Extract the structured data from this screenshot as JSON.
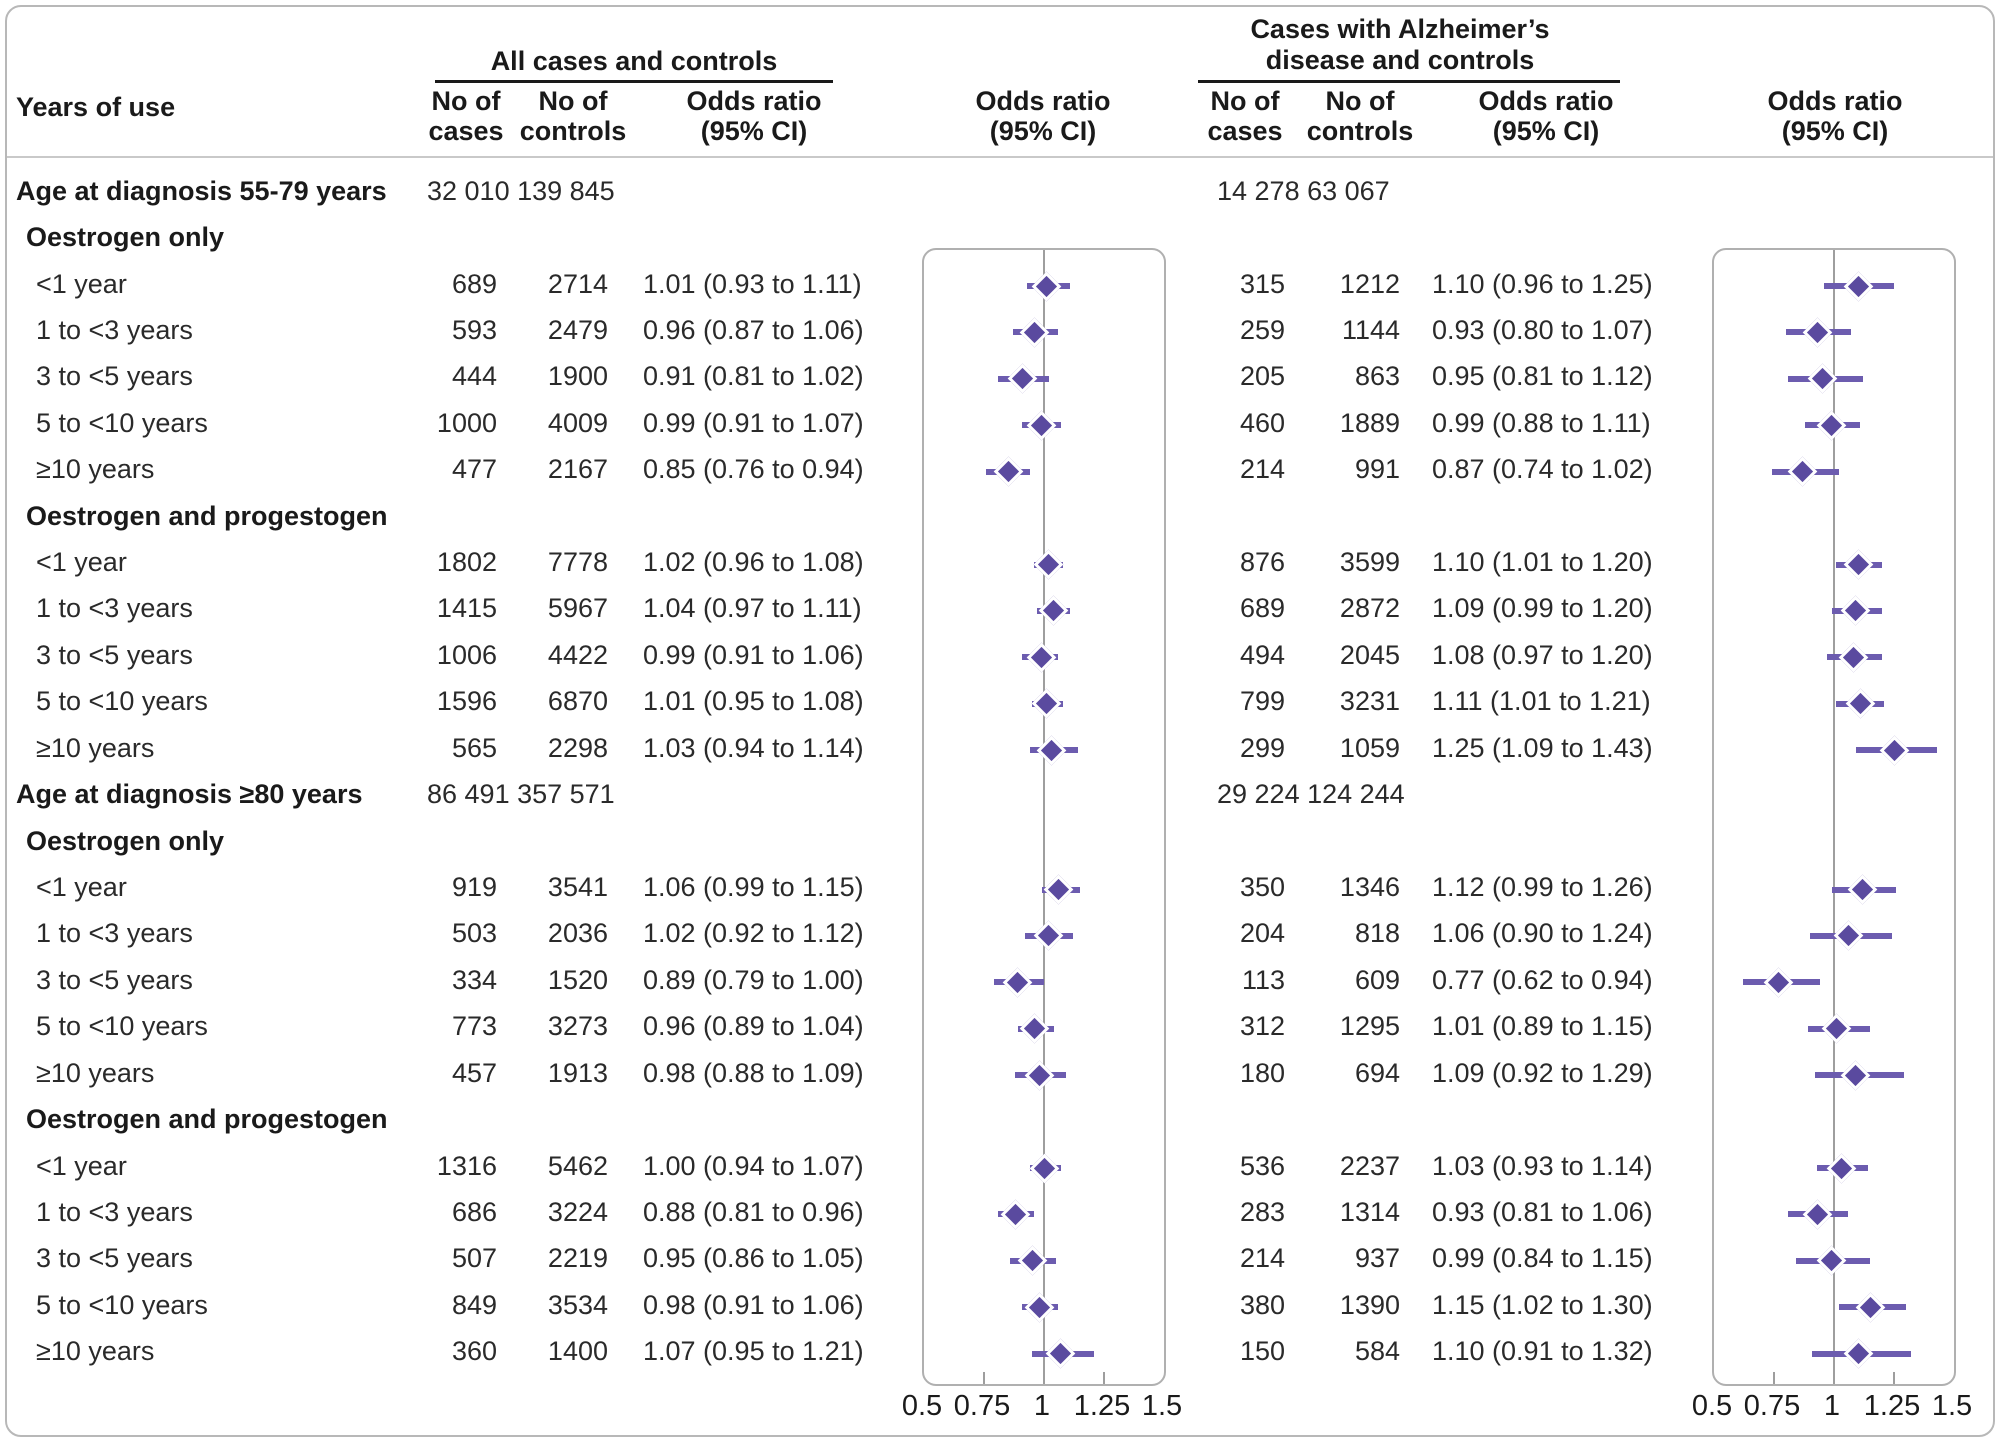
{
  "headers": {
    "years_of_use": "Years of use",
    "group1_title": "All cases and controls",
    "group2_title_line1": "Cases with Alzheimer’s",
    "group2_title_line2": "disease and controls",
    "no_of_line1": "No of",
    "no_of_cases_line2": "cases",
    "no_of_controls_line2": "controls",
    "odds_ratio_line1": "Odds ratio",
    "odds_ratio_line2": "(95% CI)"
  },
  "axis": {
    "ticks": [
      "0.5",
      "0.75",
      "1",
      "1.25",
      "1.5"
    ],
    "tick_values": [
      0.5,
      0.75,
      1,
      1.25,
      1.5
    ],
    "min": 0.5,
    "max": 1.5,
    "reference_value": 1
  },
  "colors": {
    "diamond": "#5a4a9f",
    "ci_line": "#6c5caf",
    "reference_line": "#9e9e9e",
    "panel_border": "#b0b0b0"
  },
  "chart_data": {
    "type": "forest",
    "x_scale": "odds ratio (95% CI)",
    "xlim": [
      0.5,
      1.5
    ],
    "group_labels": [
      "All cases and controls",
      "Cases with Alzheimer’s disease and controls"
    ],
    "rows": [
      {
        "type": "section",
        "label": "Age at diagnosis 55-79 years",
        "g1_totals": "32 010 139 845",
        "g2_totals": "14 278  63 067"
      },
      {
        "type": "subsection",
        "label": "Oestrogen only"
      },
      {
        "type": "item",
        "label": "<1 year",
        "g1": {
          "cases": "689",
          "controls": "2714",
          "or_text": "1.01 (0.93 to 1.11)",
          "or": 1.01,
          "lo": 0.93,
          "hi": 1.11
        },
        "g2": {
          "cases": "315",
          "controls": "1212",
          "or_text": "1.10 (0.96 to 1.25)",
          "or": 1.1,
          "lo": 0.96,
          "hi": 1.25
        }
      },
      {
        "type": "item",
        "label": "1 to <3 years",
        "g1": {
          "cases": "593",
          "controls": "2479",
          "or_text": "0.96 (0.87 to 1.06)",
          "or": 0.96,
          "lo": 0.87,
          "hi": 1.06
        },
        "g2": {
          "cases": "259",
          "controls": "1144",
          "or_text": "0.93 (0.80 to 1.07)",
          "or": 0.93,
          "lo": 0.8,
          "hi": 1.07
        }
      },
      {
        "type": "item",
        "label": "3 to <5 years",
        "g1": {
          "cases": "444",
          "controls": "1900",
          "or_text": "0.91 (0.81 to 1.02)",
          "or": 0.91,
          "lo": 0.81,
          "hi": 1.02
        },
        "g2": {
          "cases": "205",
          "controls": "863",
          "or_text": "0.95 (0.81 to 1.12)",
          "or": 0.95,
          "lo": 0.81,
          "hi": 1.12
        }
      },
      {
        "type": "item",
        "label": "5 to <10 years",
        "g1": {
          "cases": "1000",
          "controls": "4009",
          "or_text": "0.99 (0.91 to 1.07)",
          "or": 0.99,
          "lo": 0.91,
          "hi": 1.07
        },
        "g2": {
          "cases": "460",
          "controls": "1889",
          "or_text": "0.99 (0.88 to 1.11)",
          "or": 0.99,
          "lo": 0.88,
          "hi": 1.11
        }
      },
      {
        "type": "item",
        "label": "≥10 years",
        "g1": {
          "cases": "477",
          "controls": "2167",
          "or_text": "0.85 (0.76 to 0.94)",
          "or": 0.85,
          "lo": 0.76,
          "hi": 0.94
        },
        "g2": {
          "cases": "214",
          "controls": "991",
          "or_text": "0.87 (0.74 to 1.02)",
          "or": 0.87,
          "lo": 0.74,
          "hi": 1.02
        }
      },
      {
        "type": "subsection",
        "label": "Oestrogen and progestogen"
      },
      {
        "type": "item",
        "label": "<1 year",
        "g1": {
          "cases": "1802",
          "controls": "7778",
          "or_text": "1.02 (0.96 to 1.08)",
          "or": 1.02,
          "lo": 0.96,
          "hi": 1.08
        },
        "g2": {
          "cases": "876",
          "controls": "3599",
          "or_text": "1.10 (1.01 to 1.20)",
          "or": 1.1,
          "lo": 1.01,
          "hi": 1.2
        }
      },
      {
        "type": "item",
        "label": "1 to <3 years",
        "g1": {
          "cases": "1415",
          "controls": "5967",
          "or_text": "1.04 (0.97 to 1.11)",
          "or": 1.04,
          "lo": 0.97,
          "hi": 1.11
        },
        "g2": {
          "cases": "689",
          "controls": "2872",
          "or_text": "1.09 (0.99 to 1.20)",
          "or": 1.09,
          "lo": 0.99,
          "hi": 1.2
        }
      },
      {
        "type": "item",
        "label": "3 to <5 years",
        "g1": {
          "cases": "1006",
          "controls": "4422",
          "or_text": "0.99 (0.91 to 1.06)",
          "or": 0.99,
          "lo": 0.91,
          "hi": 1.06
        },
        "g2": {
          "cases": "494",
          "controls": "2045",
          "or_text": "1.08 (0.97 to 1.20)",
          "or": 1.08,
          "lo": 0.97,
          "hi": 1.2
        }
      },
      {
        "type": "item",
        "label": "5 to <10 years",
        "g1": {
          "cases": "1596",
          "controls": "6870",
          "or_text": "1.01 (0.95 to 1.08)",
          "or": 1.01,
          "lo": 0.95,
          "hi": 1.08
        },
        "g2": {
          "cases": "799",
          "controls": "3231",
          "or_text": "1.11 (1.01 to 1.21)",
          "or": 1.11,
          "lo": 1.01,
          "hi": 1.21
        }
      },
      {
        "type": "item",
        "label": "≥10 years",
        "g1": {
          "cases": "565",
          "controls": "2298",
          "or_text": "1.03 (0.94 to 1.14)",
          "or": 1.03,
          "lo": 0.94,
          "hi": 1.14
        },
        "g2": {
          "cases": "299",
          "controls": "1059",
          "or_text": "1.25 (1.09 to 1.43)",
          "or": 1.25,
          "lo": 1.09,
          "hi": 1.43
        }
      },
      {
        "type": "section",
        "label": "Age at diagnosis ≥80 years",
        "g1_totals": "86 491 357 571",
        "g2_totals": "29 224 124 244"
      },
      {
        "type": "subsection",
        "label": "Oestrogen only"
      },
      {
        "type": "item",
        "label": "<1 year",
        "g1": {
          "cases": "919",
          "controls": "3541",
          "or_text": "1.06 (0.99 to 1.15)",
          "or": 1.06,
          "lo": 0.99,
          "hi": 1.15
        },
        "g2": {
          "cases": "350",
          "controls": "1346",
          "or_text": "1.12 (0.99 to 1.26)",
          "or": 1.12,
          "lo": 0.99,
          "hi": 1.26
        }
      },
      {
        "type": "item",
        "label": "1 to <3 years",
        "g1": {
          "cases": "503",
          "controls": "2036",
          "or_text": "1.02 (0.92 to 1.12)",
          "or": 1.02,
          "lo": 0.92,
          "hi": 1.12
        },
        "g2": {
          "cases": "204",
          "controls": "818",
          "or_text": "1.06 (0.90 to 1.24)",
          "or": 1.06,
          "lo": 0.9,
          "hi": 1.24
        }
      },
      {
        "type": "item",
        "label": "3 to <5 years",
        "g1": {
          "cases": "334",
          "controls": "1520",
          "or_text": "0.89 (0.79 to 1.00)",
          "or": 0.89,
          "lo": 0.79,
          "hi": 1.0
        },
        "g2": {
          "cases": "113",
          "controls": "609",
          "or_text": "0.77 (0.62 to 0.94)",
          "or": 0.77,
          "lo": 0.62,
          "hi": 0.94
        }
      },
      {
        "type": "item",
        "label": "5 to <10 years",
        "g1": {
          "cases": "773",
          "controls": "3273",
          "or_text": "0.96 (0.89 to 1.04)",
          "or": 0.96,
          "lo": 0.89,
          "hi": 1.04
        },
        "g2": {
          "cases": "312",
          "controls": "1295",
          "or_text": "1.01 (0.89 to 1.15)",
          "or": 1.01,
          "lo": 0.89,
          "hi": 1.15
        }
      },
      {
        "type": "item",
        "label": "≥10 years",
        "g1": {
          "cases": "457",
          "controls": "1913",
          "or_text": "0.98 (0.88 to 1.09)",
          "or": 0.98,
          "lo": 0.88,
          "hi": 1.09
        },
        "g2": {
          "cases": "180",
          "controls": "694",
          "or_text": "1.09 (0.92 to 1.29)",
          "or": 1.09,
          "lo": 0.92,
          "hi": 1.29
        }
      },
      {
        "type": "subsection",
        "label": "Oestrogen and progestogen"
      },
      {
        "type": "item",
        "label": "<1 year",
        "g1": {
          "cases": "1316",
          "controls": "5462",
          "or_text": "1.00 (0.94 to 1.07)",
          "or": 1.0,
          "lo": 0.94,
          "hi": 1.07
        },
        "g2": {
          "cases": "536",
          "controls": "2237",
          "or_text": "1.03 (0.93 to 1.14)",
          "or": 1.03,
          "lo": 0.93,
          "hi": 1.14
        }
      },
      {
        "type": "item",
        "label": "1 to <3 years",
        "g1": {
          "cases": "686",
          "controls": "3224",
          "or_text": "0.88 (0.81 to 0.96)",
          "or": 0.88,
          "lo": 0.81,
          "hi": 0.96
        },
        "g2": {
          "cases": "283",
          "controls": "1314",
          "or_text": "0.93 (0.81 to 1.06)",
          "or": 0.93,
          "lo": 0.81,
          "hi": 1.06
        }
      },
      {
        "type": "item",
        "label": "3 to <5 years",
        "g1": {
          "cases": "507",
          "controls": "2219",
          "or_text": "0.95 (0.86 to 1.05)",
          "or": 0.95,
          "lo": 0.86,
          "hi": 1.05
        },
        "g2": {
          "cases": "214",
          "controls": "937",
          "or_text": "0.99 (0.84 to 1.15)",
          "or": 0.99,
          "lo": 0.84,
          "hi": 1.15
        }
      },
      {
        "type": "item",
        "label": "5 to <10 years",
        "g1": {
          "cases": "849",
          "controls": "3534",
          "or_text": "0.98 (0.91 to 1.06)",
          "or": 0.98,
          "lo": 0.91,
          "hi": 1.06
        },
        "g2": {
          "cases": "380",
          "controls": "1390",
          "or_text": "1.15 (1.02 to 1.30)",
          "or": 1.15,
          "lo": 1.02,
          "hi": 1.3
        }
      },
      {
        "type": "item",
        "label": "≥10 years",
        "g1": {
          "cases": "360",
          "controls": "1400",
          "or_text": "1.07 (0.95 to 1.21)",
          "or": 1.07,
          "lo": 0.95,
          "hi": 1.21
        },
        "g2": {
          "cases": "150",
          "controls": "584",
          "or_text": "1.10 (0.91 to 1.32)",
          "or": 1.1,
          "lo": 0.91,
          "hi": 1.32
        }
      }
    ]
  }
}
